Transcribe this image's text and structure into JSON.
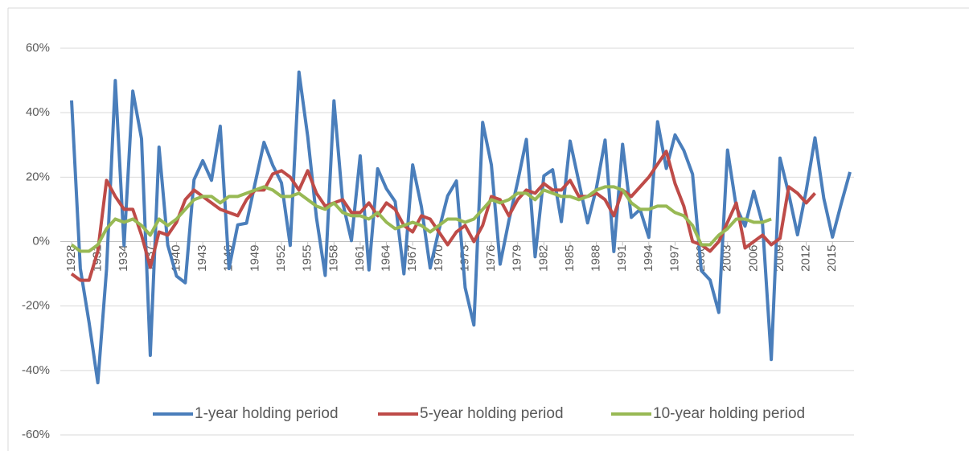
{
  "chart_data": {
    "type": "line",
    "x": [
      1928,
      1929,
      1930,
      1931,
      1932,
      1933,
      1934,
      1935,
      1936,
      1937,
      1938,
      1939,
      1940,
      1941,
      1942,
      1943,
      1944,
      1945,
      1946,
      1947,
      1948,
      1949,
      1950,
      1951,
      1952,
      1953,
      1954,
      1955,
      1956,
      1957,
      1958,
      1959,
      1960,
      1961,
      1962,
      1963,
      1964,
      1965,
      1966,
      1967,
      1968,
      1969,
      1970,
      1971,
      1972,
      1973,
      1974,
      1975,
      1976,
      1977,
      1978,
      1979,
      1980,
      1981,
      1982,
      1983,
      1984,
      1985,
      1986,
      1987,
      1988,
      1989,
      1990,
      1991,
      1992,
      1993,
      1994,
      1995,
      1996,
      1997,
      1998,
      1999,
      2000,
      2001,
      2002,
      2003,
      2004,
      2005,
      2006,
      2007,
      2008,
      2009,
      2010,
      2011,
      2012,
      2013,
      2014,
      2015,
      2016,
      2017
    ],
    "series": [
      {
        "name": "1-year holding period",
        "color": "#4a7ebb",
        "values": [
          43.8,
          -8.3,
          -25.1,
          -43.8,
          -8.6,
          50,
          -1.2,
          46.7,
          31.9,
          -35.3,
          29.3,
          -1.1,
          -10.7,
          -12.8,
          19.2,
          25.1,
          19,
          35.8,
          -8.4,
          5.2,
          5.7,
          18.3,
          30.8,
          23.7,
          18.2,
          -1.2,
          52.6,
          32.6,
          7.4,
          -10.5,
          43.7,
          12.1,
          0.3,
          26.6,
          -8.8,
          22.6,
          16.4,
          12.4,
          -10,
          23.8,
          10.8,
          -8.2,
          3.6,
          14.2,
          18.8,
          -14.3,
          -25.9,
          37,
          23.8,
          -7,
          6.5,
          18.5,
          31.7,
          -4.7,
          20.4,
          22.3,
          6.2,
          31.2,
          18.5,
          5.8,
          16.5,
          31.5,
          -3.1,
          30.2,
          7.5,
          10,
          1.3,
          37.2,
          22.7,
          33.1,
          28.3,
          20.9,
          -9,
          -11.9,
          -22,
          28.4,
          10.7,
          4.8,
          15.6,
          5.5,
          -36.6,
          25.9,
          14.8,
          2.1,
          15.9,
          32.2,
          13.5,
          1.4,
          11.8,
          21.6
        ]
      },
      {
        "name": "5-year holding period",
        "color": "#be4b48",
        "values": [
          -10,
          -12,
          -12,
          -3,
          19,
          14,
          10,
          10,
          2,
          -8,
          3,
          2,
          6,
          13,
          16,
          14,
          12,
          10,
          9,
          8,
          13,
          16,
          16,
          21,
          22,
          20,
          16,
          22,
          15,
          11,
          12,
          13,
          9,
          9,
          12,
          8,
          12,
          10,
          5,
          3,
          8,
          7,
          3,
          -1,
          3,
          5,
          0,
          5,
          14,
          13,
          8,
          13,
          16,
          15,
          18,
          16,
          16,
          19,
          14,
          14,
          15,
          13,
          8,
          16,
          14,
          17,
          20,
          24,
          28,
          18,
          11,
          0,
          -1,
          -3,
          0,
          6,
          12,
          -2,
          0,
          2,
          -1,
          1,
          17,
          15,
          12,
          15,
          null,
          null,
          null,
          null
        ]
      },
      {
        "name": "10-year holding period",
        "color": "#98b954",
        "values": [
          -1,
          -3,
          -3,
          -1,
          4,
          7,
          6,
          7,
          5,
          2,
          7,
          5,
          7,
          10,
          13,
          14,
          14,
          12,
          14,
          14,
          15,
          16,
          17,
          16,
          14,
          14,
          15,
          13,
          11,
          10,
          12,
          9,
          8,
          8,
          7,
          9,
          6,
          4,
          5,
          6,
          5,
          3,
          5,
          7,
          7,
          6,
          7,
          10,
          13,
          12,
          13,
          15,
          15,
          13,
          16,
          15,
          14,
          14,
          13,
          14,
          16,
          17,
          17,
          16,
          12,
          10,
          10,
          11,
          11,
          9,
          8,
          5,
          -1,
          -1,
          2,
          4,
          7,
          7,
          6,
          6,
          7,
          null,
          null,
          null,
          null,
          null,
          null,
          null,
          null,
          null
        ]
      }
    ],
    "xlim": [
      1928,
      2017
    ],
    "xticks": [
      1928,
      1931,
      1934,
      1937,
      1940,
      1943,
      1946,
      1949,
      1952,
      1955,
      1958,
      1961,
      1964,
      1967,
      1970,
      1973,
      1976,
      1979,
      1982,
      1985,
      1988,
      1991,
      1994,
      1997,
      2000,
      2003,
      2006,
      2009,
      2012,
      2015
    ],
    "ylim": [
      -60,
      60
    ],
    "yticks": [
      {
        "value": -60,
        "label": "-60%"
      },
      {
        "value": -40,
        "label": "-40%"
      },
      {
        "value": -20,
        "label": "-20%"
      },
      {
        "value": 0,
        "label": "0%"
      },
      {
        "value": 20,
        "label": "20%"
      },
      {
        "value": 40,
        "label": "40%"
      },
      {
        "value": 60,
        "label": "60%"
      }
    ],
    "grid": true,
    "legend": "bottom"
  }
}
